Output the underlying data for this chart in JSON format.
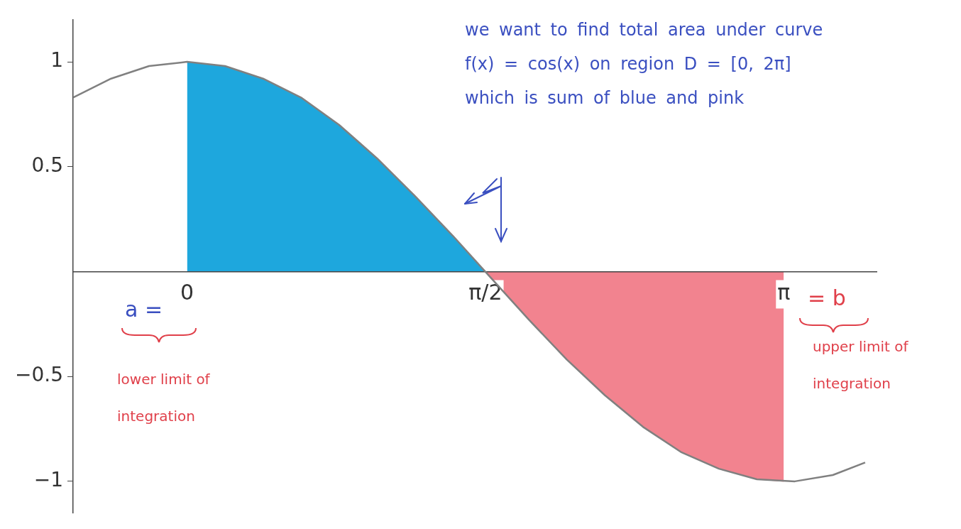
{
  "chart_data": {
    "type": "line",
    "xlim": [
      -0.6,
      3.63
    ],
    "ylim": [
      -1.15,
      1.2
    ],
    "xticks": [
      {
        "value": 0,
        "label": "0"
      },
      {
        "value": 1.5708,
        "label": "π/2"
      },
      {
        "value": 3.1416,
        "label": "π"
      }
    ],
    "yticks": [
      1,
      0.5,
      -0.5,
      -1
    ],
    "grid": false,
    "legend": false,
    "marker": "none",
    "line_style": "solid",
    "series": [
      {
        "type": "area",
        "color": "#1ea7dd",
        "x": [
          0,
          0.2,
          0.4,
          0.6,
          0.8,
          1.0,
          1.2,
          1.4,
          1.5708
        ],
        "values": [
          1,
          0.98,
          0.92,
          0.83,
          0.7,
          0.54,
          0.36,
          0.17,
          0
        ]
      },
      {
        "type": "area",
        "color": "#f2838f",
        "x": [
          1.5708,
          1.8,
          2.0,
          2.2,
          2.4,
          2.6,
          2.8,
          3.0,
          3.1416
        ],
        "values": [
          0,
          -0.23,
          -0.42,
          -0.59,
          -0.74,
          -0.86,
          -0.94,
          -0.99,
          -1
        ]
      },
      {
        "type": "line",
        "color": "#808080",
        "x": [
          -0.6,
          -0.4,
          -0.2,
          0,
          0.2,
          0.4,
          0.6,
          0.8,
          1.0,
          1.2,
          1.4,
          1.6,
          1.8,
          2.0,
          2.2,
          2.4,
          2.6,
          2.8,
          3.0,
          3.2,
          3.4,
          3.57
        ],
        "values": [
          0.83,
          0.92,
          0.98,
          1,
          0.98,
          0.92,
          0.83,
          0.7,
          0.54,
          0.36,
          0.17,
          -0.03,
          -0.23,
          -0.42,
          -0.59,
          -0.74,
          -0.86,
          -0.94,
          -0.99,
          -1,
          -0.97,
          -0.91
        ]
      }
    ],
    "annotations": [
      "we want to find total area under curve f(x) = cos(x) on region D = [0, 2π] which is sum of blue and pink",
      "a =",
      "= b",
      "lower limit of integration",
      "upper limit of integration"
    ]
  }
}
